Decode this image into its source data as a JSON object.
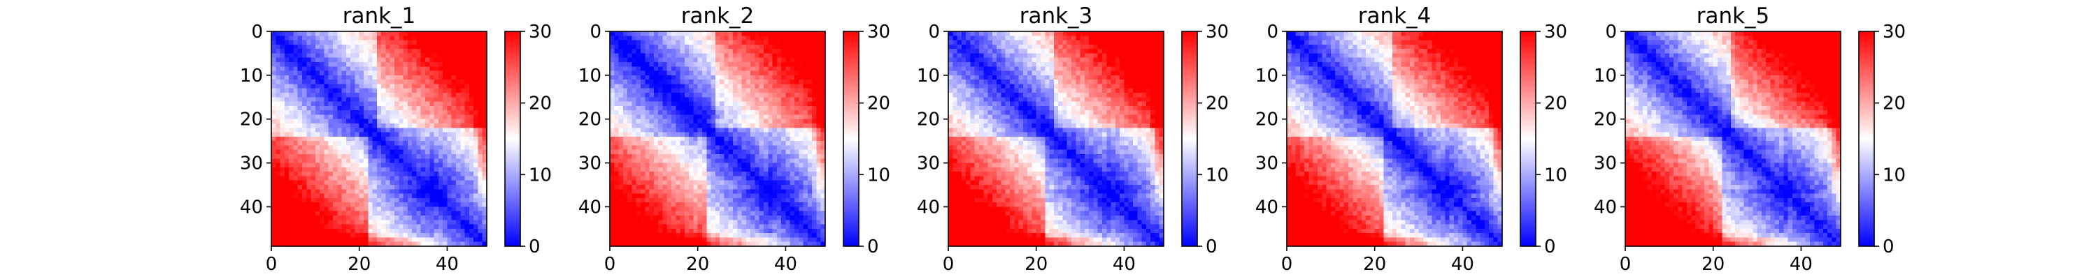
{
  "chart_data": {
    "type": "heatmap",
    "grid": false,
    "panels": [
      {
        "title": "rank_1",
        "variant": 1
      },
      {
        "title": "rank_2",
        "variant": 2
      },
      {
        "title": "rank_3",
        "variant": 3
      },
      {
        "title": "rank_4",
        "variant": 4
      },
      {
        "title": "rank_5",
        "variant": 5
      }
    ],
    "matrix_size": [
      49,
      49
    ],
    "x_range": [
      0,
      49
    ],
    "y_range": [
      0,
      49
    ],
    "y_inverted": true,
    "x_ticks": [
      0,
      20,
      40
    ],
    "y_ticks": [
      0,
      10,
      20,
      30,
      40
    ],
    "colorbar": {
      "range": [
        0,
        30
      ],
      "ticks": [
        0,
        10,
        20,
        30
      ],
      "colormap": "bwr",
      "colors": {
        "low": "#0000ff",
        "mid": "#ffffff",
        "high": "#ff0000"
      }
    },
    "value_description": "symmetric pairwise distance map: near 0 on the diagonal, rising with separation |i-j| toward ~30 in the upper-right and bottom-left corners"
  }
}
